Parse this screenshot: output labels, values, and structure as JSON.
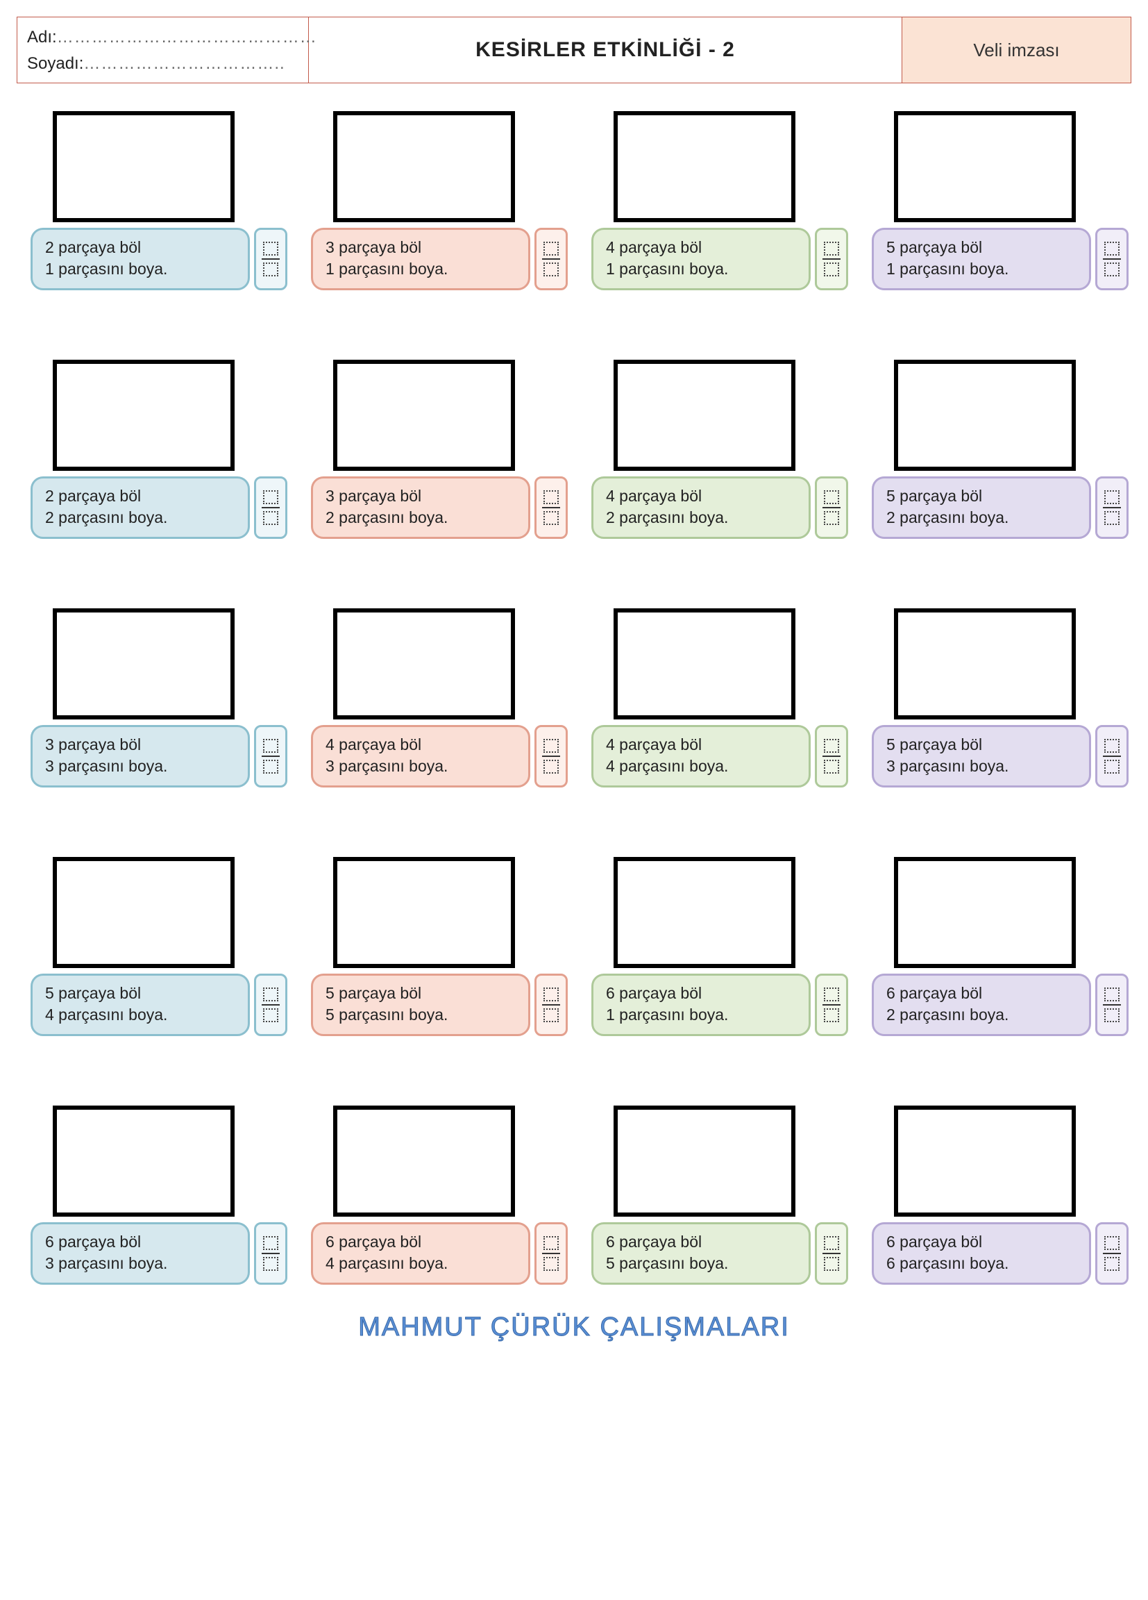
{
  "header": {
    "name_label": "Adı:",
    "surname_label": "Soyadı:",
    "dots_name": "………………………………………",
    "dots_surname": "……………………………..",
    "title": "KESİRLER ETKİNLİĞİ - 2",
    "signature": "Veli imzası"
  },
  "palette": {
    "col1": {
      "fill": "#d6e8ee",
      "border": "#8bbfce",
      "frac_fill": "#eef6f9"
    },
    "col2": {
      "fill": "#fadfd6",
      "border": "#e3a08e",
      "frac_fill": "#fdf0eb"
    },
    "col3": {
      "fill": "#e4efd9",
      "border": "#aec99a",
      "frac_fill": "#f1f7ea"
    },
    "col4": {
      "fill": "#e3def0",
      "border": "#b5a8d4",
      "frac_fill": "#f1eef8"
    }
  },
  "cells": [
    {
      "col": 1,
      "line1": "2 parçaya böl",
      "line2": "1 parçasını boya."
    },
    {
      "col": 2,
      "line1": "3 parçaya böl",
      "line2": "1 parçasını boya."
    },
    {
      "col": 3,
      "line1": "4 parçaya böl",
      "line2": "1 parçasını boya."
    },
    {
      "col": 4,
      "line1": "5 parçaya böl",
      "line2": "1 parçasını boya."
    },
    {
      "col": 1,
      "line1": "2 parçaya böl",
      "line2": "2 parçasını boya."
    },
    {
      "col": 2,
      "line1": "3 parçaya böl",
      "line2": "2 parçasını boya."
    },
    {
      "col": 3,
      "line1": "4 parçaya böl",
      "line2": "2 parçasını boya."
    },
    {
      "col": 4,
      "line1": "5 parçaya böl",
      "line2": "2 parçasını boya."
    },
    {
      "col": 1,
      "line1": "3 parçaya böl",
      "line2": "3 parçasını boya."
    },
    {
      "col": 2,
      "line1": "4 parçaya böl",
      "line2": "3 parçasını boya."
    },
    {
      "col": 3,
      "line1": "4 parçaya böl",
      "line2": "4 parçasını boya."
    },
    {
      "col": 4,
      "line1": "5 parçaya böl",
      "line2": "3 parçasını boya."
    },
    {
      "col": 1,
      "line1": "5 parçaya böl",
      "line2": "4 parçasını boya."
    },
    {
      "col": 2,
      "line1": "5 parçaya böl",
      "line2": "5 parçasını boya."
    },
    {
      "col": 3,
      "line1": "6 parçaya böl",
      "line2": "1 parçasını boya."
    },
    {
      "col": 4,
      "line1": "6 parçaya böl",
      "line2": "2 parçasını boya."
    },
    {
      "col": 1,
      "line1": "6 parçaya böl",
      "line2": "3 parçasını boya."
    },
    {
      "col": 2,
      "line1": "6 parçaya böl",
      "line2": "4 parçasını boya."
    },
    {
      "col": 3,
      "line1": "6 parçaya böl",
      "line2": "5 parçasını boya."
    },
    {
      "col": 4,
      "line1": "6 parçaya böl",
      "line2": "6 parçasını boya."
    }
  ],
  "footer": "MAHMUT ÇÜRÜK ÇALIŞMALARI"
}
